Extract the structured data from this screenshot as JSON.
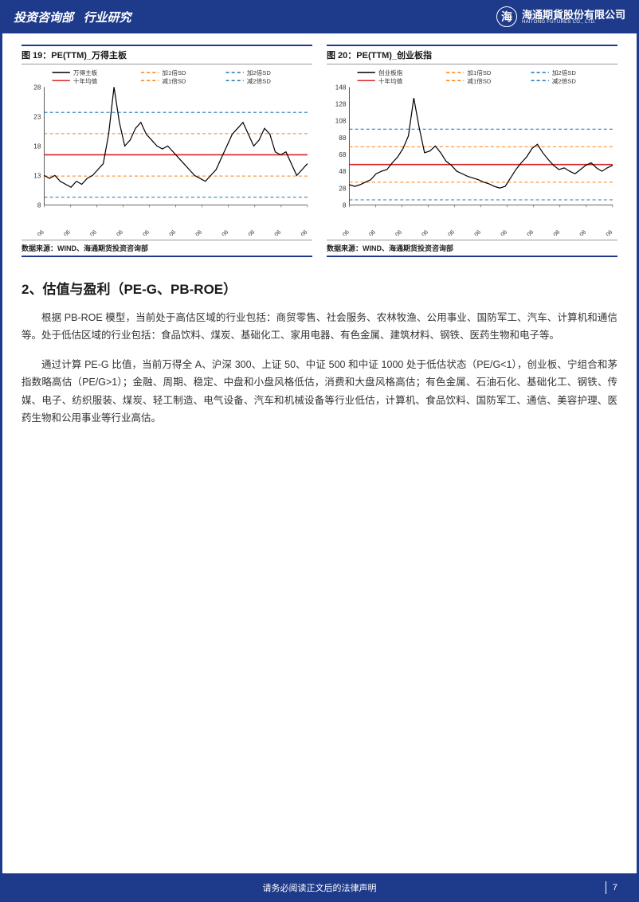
{
  "header": {
    "department": "投资咨询部",
    "category": "行业研究",
    "company_cn": "海通期貨股份有限公司",
    "company_en": "HAITONG FUTURES CO., LTD.",
    "logo_char": "海"
  },
  "chart19": {
    "title": "图 19：PE(TTM)_万得主板",
    "source": "数据来源：WIND、海通期货投资咨询部",
    "type": "line",
    "ylim": [
      8,
      28
    ],
    "yticks": [
      8,
      13,
      18,
      23,
      28
    ],
    "xticks": [
      "2012-06",
      "2013-06",
      "2014-06",
      "2015-06",
      "2016-06",
      "2017-06",
      "2018-06",
      "2019-06",
      "2020-06",
      "2021-06",
      "2022-06"
    ],
    "legend": [
      {
        "label": "万得主板",
        "color": "#000000",
        "dash": "none"
      },
      {
        "label": "十年均值",
        "color": "#d62728",
        "dash": "none"
      },
      {
        "label": "加1倍SD",
        "color": "#ff7f0e",
        "dash": "4,3"
      },
      {
        "label": "减1倍SD",
        "color": "#ff7f0e",
        "dash": "4,3"
      },
      {
        "label": "加2倍SD",
        "color": "#1f77b4",
        "dash": "4,3"
      },
      {
        "label": "减2倍SD",
        "color": "#1f77b4",
        "dash": "4,3"
      }
    ],
    "mean": 16.5,
    "sd": 3.6,
    "series_color": "#000000",
    "bg_color": "#ffffff",
    "grid_color": "#dddddd",
    "data": [
      13,
      12.5,
      13,
      12,
      11.5,
      11,
      12,
      11.5,
      12.5,
      13,
      14,
      15,
      20,
      28,
      22,
      18,
      19,
      21,
      22,
      20,
      19,
      18,
      17.5,
      18,
      17,
      16,
      15,
      14,
      13,
      12.5,
      12,
      13,
      14,
      16,
      18,
      20,
      21,
      22,
      20,
      18,
      19,
      21,
      20,
      17,
      16.5,
      17,
      15,
      13,
      14,
      15
    ]
  },
  "chart20": {
    "title": "图 20：PE(TTM)_创业板指",
    "source": "数据来源：WIND、海通期货投资咨询部",
    "type": "line",
    "ylim": [
      8,
      148
    ],
    "yticks": [
      8,
      28,
      48,
      68,
      88,
      108,
      128,
      148
    ],
    "xticks": [
      "2012-06",
      "2013-06",
      "2014-06",
      "2015-06",
      "2016-06",
      "2017-06",
      "2018-06",
      "2019-06",
      "2020-06",
      "2021-06",
      "2022-06"
    ],
    "legend": [
      {
        "label": "创业板指",
        "color": "#000000",
        "dash": "none"
      },
      {
        "label": "十年均值",
        "color": "#d62728",
        "dash": "none"
      },
      {
        "label": "加1倍SD",
        "color": "#ff7f0e",
        "dash": "4,3"
      },
      {
        "label": "减1倍SD",
        "color": "#ff7f0e",
        "dash": "4,3"
      },
      {
        "label": "加2倍SD",
        "color": "#1f77b4",
        "dash": "4,3"
      },
      {
        "label": "减2倍SD",
        "color": "#1f77b4",
        "dash": "4,3"
      }
    ],
    "mean": 56,
    "sd": 21,
    "series_color": "#000000",
    "bg_color": "#ffffff",
    "grid_color": "#dddddd",
    "data": [
      32,
      30,
      32,
      35,
      38,
      45,
      48,
      50,
      58,
      65,
      75,
      90,
      135,
      100,
      70,
      72,
      78,
      70,
      60,
      55,
      48,
      45,
      42,
      40,
      38,
      35,
      33,
      30,
      28,
      30,
      40,
      50,
      58,
      65,
      75,
      80,
      70,
      62,
      55,
      50,
      52,
      48,
      45,
      50,
      55,
      58,
      52,
      48,
      52,
      55
    ]
  },
  "section": {
    "title": "2、估值与盈利（PE-G、PB-ROE）",
    "para1": "根据 PB-ROE 模型，当前处于高估区域的行业包括：商贸零售、社会服务、农林牧渔、公用事业、国防军工、汽车、计算机和通信等。处于低估区域的行业包括：食品饮料、煤炭、基础化工、家用电器、有色金属、建筑材料、钢铁、医药生物和电子等。",
    "para2": "通过计算 PE-G 比值，当前万得全 A、沪深 300、上证 50、中证 500 和中证 1000 处于低估状态（PE/G<1），创业板、宁组合和茅指数略高估（PE/G>1）；金融、周期、稳定、中盘和小盘风格低估，消费和大盘风格高估；有色金属、石油石化、基础化工、钢铁、传媒、电子、纺织服装、煤炭、轻工制造、电气设备、汽车和机械设备等行业低估，计算机、食品饮料、国防军工、通信、美容护理、医药生物和公用事业等行业高估。"
  },
  "footer": {
    "disclaimer": "请务必阅读正文后的法律声明",
    "page": "7"
  }
}
